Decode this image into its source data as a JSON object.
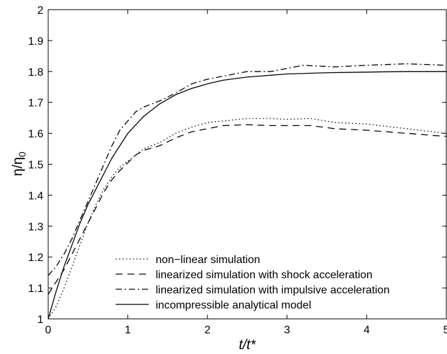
{
  "chart_data": {
    "type": "line",
    "title": "",
    "xlabel": "t/t*",
    "ylabel_main": "η/η",
    "ylabel_sub": "0",
    "xlim": [
      0,
      5
    ],
    "ylim": [
      1,
      2
    ],
    "xticks": [
      0,
      1,
      2,
      3,
      4,
      5
    ],
    "yticks": [
      1,
      1.1,
      1.2,
      1.3,
      1.4,
      1.5,
      1.6,
      1.7,
      1.8,
      1.9,
      2
    ],
    "grid": false,
    "legend_position": "bottom-center",
    "series": [
      {
        "name": "non−linear simulation",
        "style": "dotted",
        "color": "#000000",
        "x": [
          0,
          0.1,
          0.2,
          0.3,
          0.4,
          0.5,
          0.6,
          0.7,
          0.8,
          0.9,
          1.0,
          1.1,
          1.2,
          1.4,
          1.6,
          1.8,
          2.0,
          2.2,
          2.5,
          2.8,
          3.0,
          3.3,
          3.6,
          4.0,
          4.5,
          5.0
        ],
        "y": [
          1.0,
          1.04,
          1.1,
          1.17,
          1.24,
          1.31,
          1.37,
          1.42,
          1.46,
          1.49,
          1.51,
          1.53,
          1.55,
          1.57,
          1.6,
          1.62,
          1.635,
          1.64,
          1.648,
          1.648,
          1.645,
          1.648,
          1.635,
          1.63,
          1.615,
          1.6
        ]
      },
      {
        "name": "linearized simulation with shock acceleration",
        "style": "dashed",
        "color": "#000000",
        "x": [
          0,
          0.1,
          0.2,
          0.3,
          0.4,
          0.5,
          0.6,
          0.7,
          0.8,
          0.9,
          1.0,
          1.1,
          1.2,
          1.4,
          1.6,
          1.8,
          2.0,
          2.2,
          2.5,
          2.8,
          3.0,
          3.3,
          3.6,
          4.0,
          4.5,
          5.0
        ],
        "y": [
          1.08,
          1.12,
          1.16,
          1.21,
          1.26,
          1.31,
          1.36,
          1.41,
          1.45,
          1.48,
          1.505,
          1.53,
          1.545,
          1.56,
          1.585,
          1.605,
          1.615,
          1.625,
          1.628,
          1.625,
          1.625,
          1.625,
          1.615,
          1.61,
          1.6,
          1.59
        ]
      },
      {
        "name": "linearized simulation with impulsive acceleration",
        "style": "dashdot",
        "color": "#000000",
        "x": [
          0,
          0.1,
          0.2,
          0.3,
          0.4,
          0.5,
          0.6,
          0.7,
          0.8,
          0.9,
          1.0,
          1.1,
          1.2,
          1.4,
          1.6,
          1.8,
          2.0,
          2.2,
          2.5,
          2.8,
          3.0,
          3.2,
          3.6,
          4.0,
          4.5,
          5.0
        ],
        "y": [
          1.14,
          1.17,
          1.21,
          1.26,
          1.32,
          1.38,
          1.44,
          1.5,
          1.56,
          1.61,
          1.64,
          1.67,
          1.685,
          1.705,
          1.73,
          1.76,
          1.775,
          1.785,
          1.8,
          1.8,
          1.81,
          1.82,
          1.815,
          1.82,
          1.825,
          1.82
        ]
      },
      {
        "name": "incompressible analytical model",
        "style": "solid",
        "color": "#000000",
        "x": [
          0,
          0.1,
          0.2,
          0.3,
          0.4,
          0.5,
          0.6,
          0.7,
          0.8,
          0.9,
          1.0,
          1.2,
          1.4,
          1.6,
          1.8,
          2.0,
          2.2,
          2.5,
          3.0,
          3.5,
          4.0,
          4.5,
          5.0
        ],
        "y": [
          1.0,
          1.09,
          1.17,
          1.24,
          1.31,
          1.37,
          1.42,
          1.47,
          1.52,
          1.56,
          1.6,
          1.655,
          1.695,
          1.725,
          1.745,
          1.76,
          1.772,
          1.782,
          1.792,
          1.796,
          1.798,
          1.8,
          1.8
        ]
      }
    ]
  }
}
